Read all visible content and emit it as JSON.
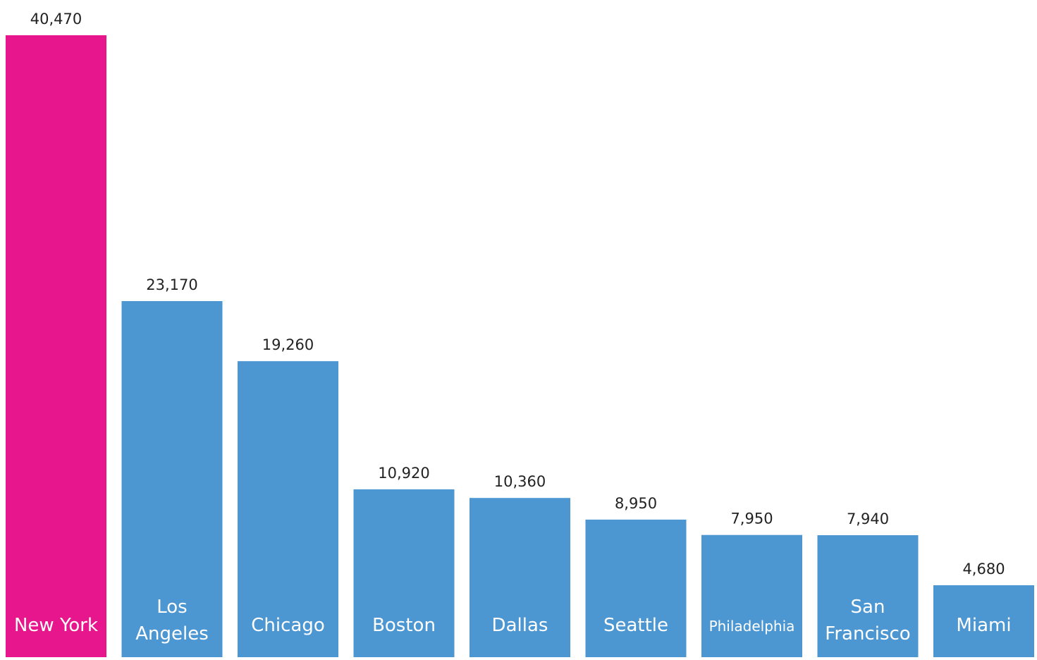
{
  "chart_data": {
    "type": "bar",
    "title": "",
    "xlabel": "",
    "ylabel": "",
    "ylim": [
      0,
      40470
    ],
    "grid": false,
    "legend": "none",
    "categories": [
      "New York",
      "Los Angeles",
      "Chicago",
      "Boston",
      "Dallas",
      "Seattle",
      "Philadelphia",
      "San Francisco",
      "Miami"
    ],
    "category_lines": [
      [
        "New York"
      ],
      [
        "Los",
        "Angeles"
      ],
      [
        "Chicago"
      ],
      [
        "Boston"
      ],
      [
        "Dallas"
      ],
      [
        "Seattle"
      ],
      [
        "Philadelphia"
      ],
      [
        "San",
        "Francisco"
      ],
      [
        "Miami"
      ]
    ],
    "values": [
      40470,
      23170,
      19260,
      10920,
      10360,
      8950,
      7950,
      7940,
      4680
    ],
    "value_labels": [
      "40,470",
      "23,170",
      "19,260",
      "10,920",
      "10,360",
      "8,950",
      "7,950",
      "7,940",
      "4,680"
    ],
    "highlight_index": 0,
    "colors": {
      "highlight": "#E8168C",
      "bar": "#4C96D1",
      "value_label": "#222222",
      "category_label": "#FFFFFF"
    }
  }
}
